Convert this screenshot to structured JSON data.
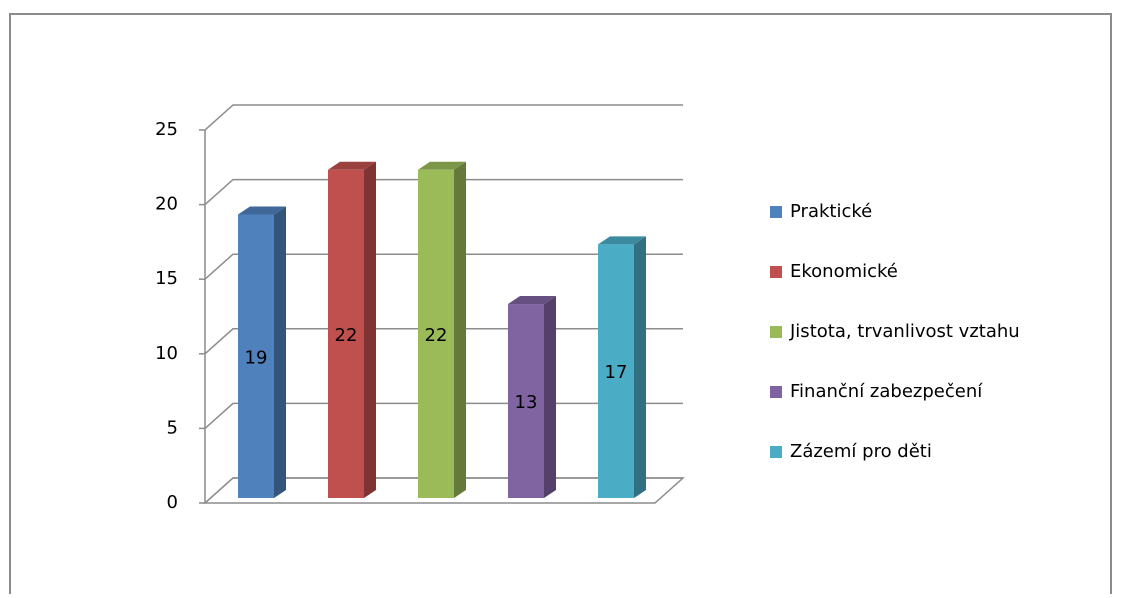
{
  "chart_data": {
    "type": "bar3d",
    "categories": [
      "Praktické",
      "Ekonomické",
      "Jistota, trvanlivost vztahu",
      "Finanční zabezpečení",
      "Zázemí pro děti"
    ],
    "values": [
      19,
      22,
      22,
      13,
      17
    ],
    "colors": [
      "#4f81bd",
      "#c0504d",
      "#9bbb59",
      "#8064a2",
      "#4bacc6"
    ],
    "ylim": [
      0,
      25
    ],
    "yticks": [
      0,
      5,
      10,
      15,
      20,
      25
    ],
    "grid": true,
    "legend": "right"
  }
}
